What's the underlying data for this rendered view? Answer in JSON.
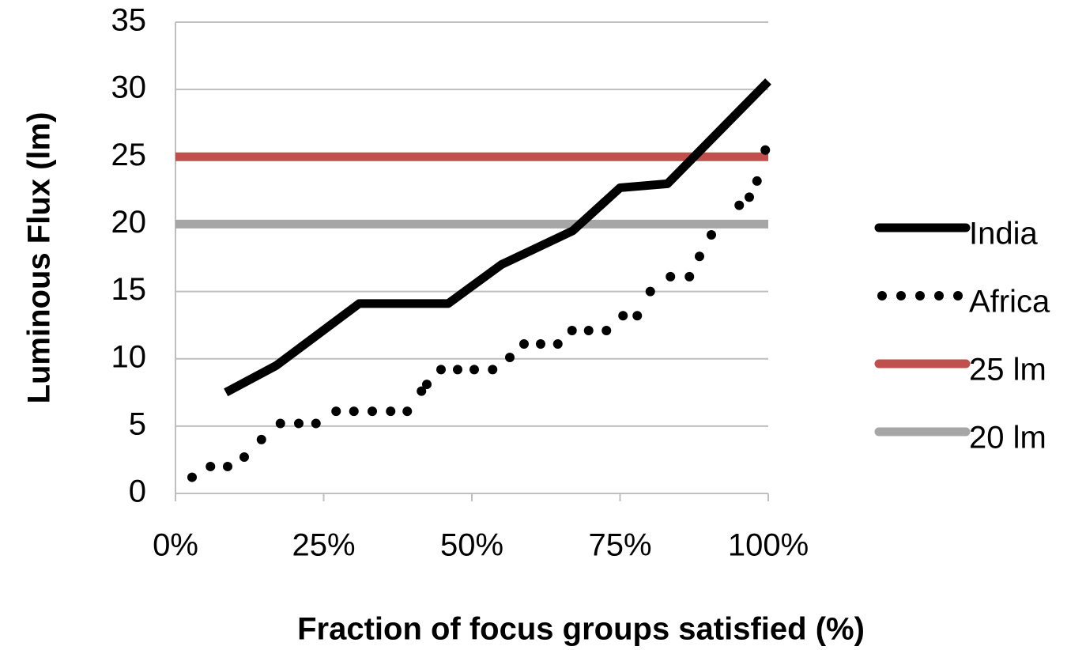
{
  "chart_data": {
    "type": "line",
    "xlabel": "Fraction of focus groups satisfied (%)",
    "ylabel": "Luminous Flux (lm)",
    "xlim": [
      0,
      100
    ],
    "ylim": [
      0,
      35
    ],
    "xticks": [
      {
        "value": 0,
        "label": "0%"
      },
      {
        "value": 25,
        "label": "25%"
      },
      {
        "value": 50,
        "label": "50%"
      },
      {
        "value": 75,
        "label": "75%"
      },
      {
        "value": 100,
        "label": "100%"
      }
    ],
    "yticks": [
      0,
      5,
      10,
      15,
      20,
      25,
      30,
      35
    ],
    "grid": true,
    "legend": "right",
    "series": [
      {
        "name": "India",
        "color": "#000000",
        "style": "solid",
        "x": [
          8.5,
          17,
          31,
          46,
          55,
          67,
          75,
          83,
          100
        ],
        "values": [
          7.5,
          9.5,
          14.1,
          14.1,
          17,
          19.5,
          22.7,
          23,
          30.6
        ]
      },
      {
        "name": "Africa",
        "color": "#000000",
        "style": "dotted",
        "x": [
          2.8,
          5.9,
          8.8,
          11.6,
          14.5,
          17.7,
          20.8,
          23.7,
          27.1,
          30.1,
          33.2,
          36.3,
          39.1,
          41.5,
          42.4,
          44.8,
          47.6,
          50.4,
          53.5,
          56.4,
          58.8,
          61.6,
          64.5,
          66.9,
          69.7,
          72.7,
          75.5,
          77.9,
          80.1,
          83.5,
          86.7,
          88.4,
          90.4,
          95.1,
          96.8,
          98.1,
          99.5
        ],
        "values": [
          1.2,
          2,
          2,
          2.7,
          4,
          5.2,
          5.2,
          5.2,
          6.1,
          6.1,
          6.1,
          6.1,
          6.1,
          7.6,
          8.1,
          9.2,
          9.2,
          9.2,
          9.2,
          10.1,
          11.1,
          11.1,
          11.1,
          12.1,
          12.1,
          12.1,
          13.2,
          13.2,
          15,
          16.1,
          16.1,
          17.6,
          19.2,
          21.4,
          22,
          23.2,
          25.5
        ]
      },
      {
        "name": "25 lm",
        "color": "#c0504d",
        "style": "solid",
        "x": [
          0,
          100
        ],
        "values": [
          25,
          25
        ]
      },
      {
        "name": "20 lm",
        "color": "#a6a6a6",
        "style": "solid",
        "x": [
          0,
          100
        ],
        "values": [
          20,
          20
        ]
      }
    ]
  }
}
